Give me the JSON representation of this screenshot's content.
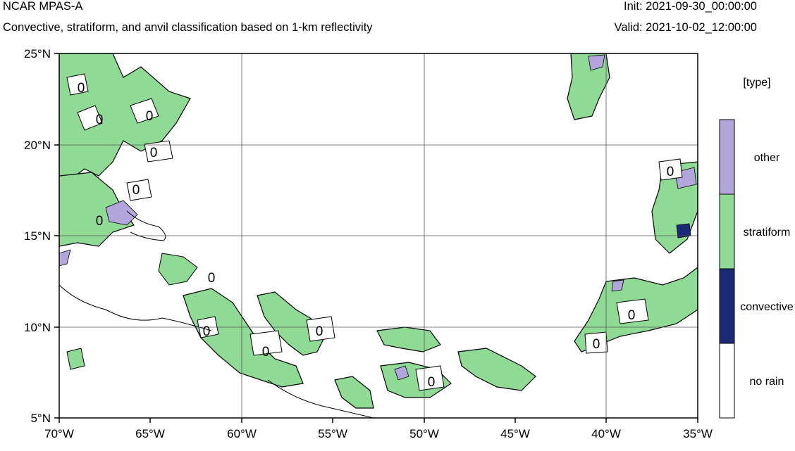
{
  "header": {
    "title": "NCAR MPAS-A",
    "subtitle": "Convective, stratiform, and anvil classification based on 1-km reflectivity",
    "init": "Init: 2021-09-30_00:00:00",
    "valid": "Valid: 2021-10-02_12:00:00"
  },
  "map": {
    "lat_labels": [
      "25°N",
      "20°N",
      "15°N",
      "10°N",
      "5°N"
    ],
    "lon_labels": [
      "70°W",
      "65°W",
      "60°W",
      "55°W",
      "50°W",
      "45°W",
      "40°W",
      "35°W"
    ],
    "contour_label": "0"
  },
  "legend": {
    "title": "[type]",
    "categories": [
      {
        "label": "other",
        "color": "#b3a6dc"
      },
      {
        "label": "stratiform",
        "color": "#8fdb96"
      },
      {
        "label": "convective",
        "color": "#1b2a78"
      },
      {
        "label": "no rain",
        "color": "#ffffff"
      }
    ]
  }
}
